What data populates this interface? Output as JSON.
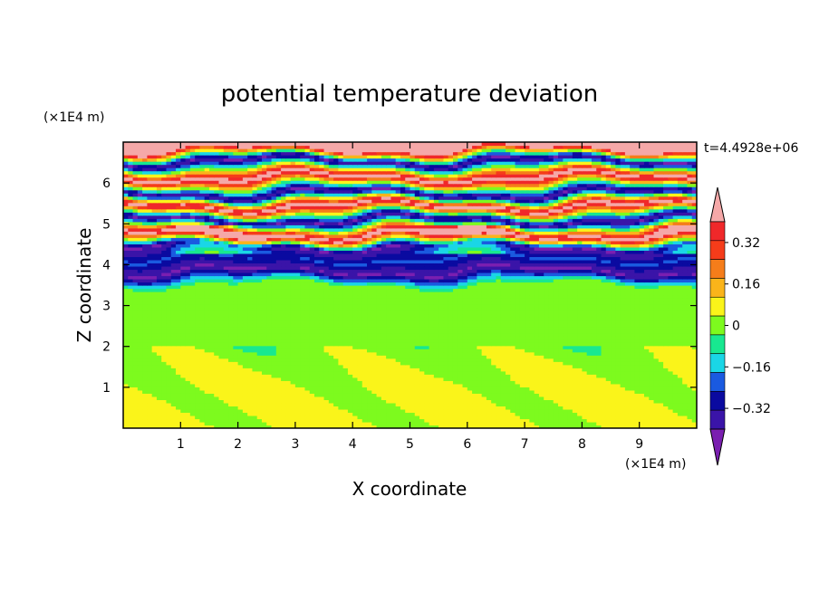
{
  "chart_data": {
    "type": "heatmap",
    "title": "potential temperature deviation",
    "xlabel": "X coordinate",
    "ylabel": "Z coordinate",
    "x_unit": "(×1E4 m)",
    "y_unit": "(×1E4 m)",
    "time_label": "t=4.4928e+06",
    "xlim": [
      0,
      10
    ],
    "ylim": [
      0,
      7
    ],
    "x_ticks": [
      "1",
      "2",
      "3",
      "4",
      "5",
      "6",
      "7",
      "8",
      "9"
    ],
    "y_ticks": [
      "1",
      "2",
      "3",
      "4",
      "5",
      "6"
    ],
    "colorbar": {
      "levels": [
        -0.48,
        -0.4,
        -0.32,
        -0.24,
        -0.16,
        -0.08,
        0,
        0.08,
        0.16,
        0.24,
        0.32,
        0.4,
        0.48
      ],
      "labels": [
        "0.32",
        "0.16",
        "0",
        "−0.16",
        "−0.32"
      ],
      "label_values": [
        0.32,
        0.16,
        0,
        -0.16,
        -0.32
      ],
      "colors": [
        "#7a1fb0",
        "#3a14a8",
        "#0a0aa0",
        "#1a5ae0",
        "#1ad6e6",
        "#18e890",
        "#7dfa1e",
        "#faf41a",
        "#fab41a",
        "#f57d1a",
        "#f53c1a",
        "#f0282a",
        "#f5a8a8"
      ]
    },
    "bands": [
      {
        "z": 6.85,
        "value": 0.5
      },
      {
        "z": 6.55,
        "value": -0.5
      },
      {
        "z": 6.15,
        "value": 0.5
      },
      {
        "z": 5.75,
        "value": -0.5
      },
      {
        "z": 5.45,
        "value": 0.5
      },
      {
        "z": 5.1,
        "value": -0.5
      },
      {
        "z": 4.75,
        "value": 0.5
      },
      {
        "z": 4.45,
        "value": -0.5
      },
      {
        "z": 4.15,
        "value": -0.3
      },
      {
        "z": 3.85,
        "value": -0.5
      },
      {
        "z": 3.5,
        "value": -0.05
      },
      {
        "z": 3.05,
        "value": -0.05
      },
      {
        "z": 2.6,
        "value": -0.05
      },
      {
        "z": 2.2,
        "value": -0.05
      },
      {
        "z": 1.0,
        "value": 0.02
      }
    ]
  }
}
